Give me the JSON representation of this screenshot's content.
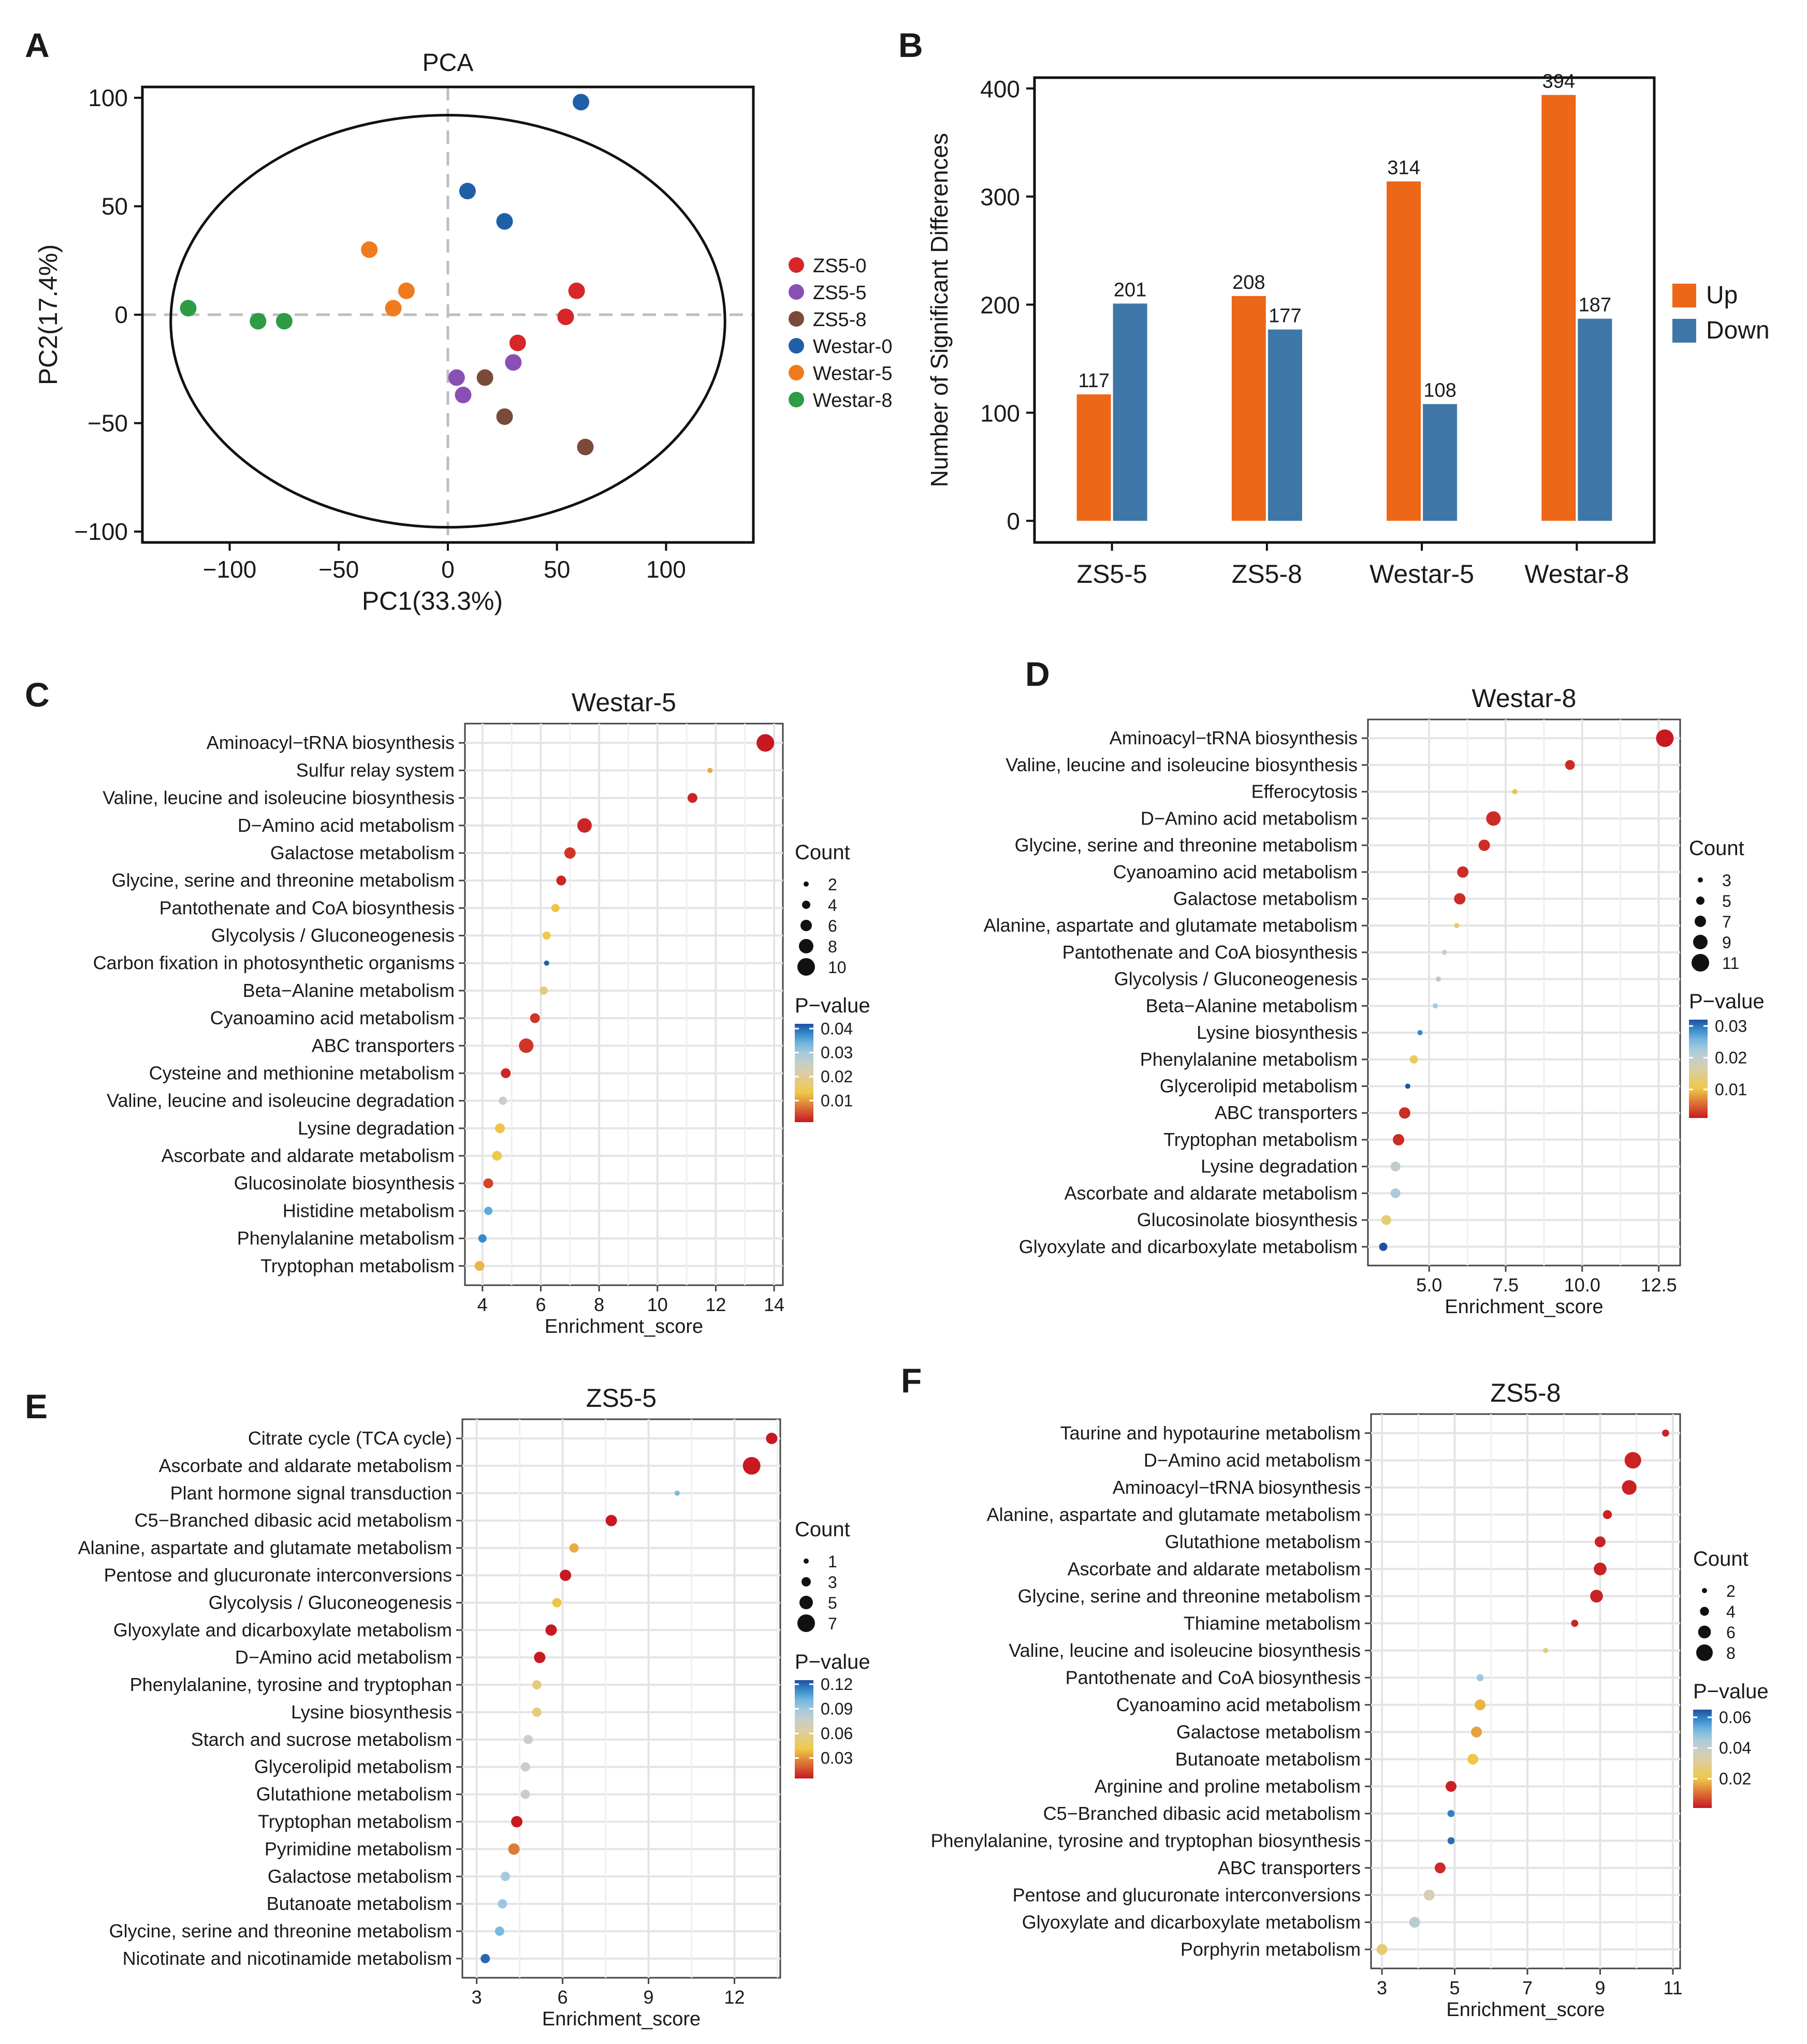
{
  "chart_data": [
    {
      "panel": "A",
      "type": "scatter",
      "title": "PCA",
      "xlabel": "PC1(33.3%)",
      "ylabel": "PC2(17.4%)",
      "xlim": [
        -140,
        140
      ],
      "ylim": [
        -105,
        105
      ],
      "xticks": [
        -100,
        -50,
        0,
        50,
        100
      ],
      "yticks": [
        -100,
        -50,
        0,
        50,
        100
      ],
      "xtick_labels": [
        "−100",
        "−50",
        "0",
        "50",
        "100"
      ],
      "ytick_labels": [
        "−100",
        "−50",
        "0",
        "50",
        "100"
      ],
      "ellipse": {
        "cx": 0,
        "cy": -3,
        "rx": 127,
        "ry": 95
      },
      "series": [
        {
          "name": "ZS5-0",
          "color": "#d62728",
          "points": [
            [
              59,
              11
            ],
            [
              54,
              -1
            ],
            [
              32,
              -13
            ]
          ]
        },
        {
          "name": "ZS5-5",
          "color": "#8a4fb5",
          "points": [
            [
              4,
              -29
            ],
            [
              7,
              -37
            ],
            [
              30,
              -22
            ]
          ]
        },
        {
          "name": "ZS5-8",
          "color": "#7a4a3a",
          "points": [
            [
              17,
              -29
            ],
            [
              26,
              -47
            ],
            [
              63,
              -61
            ]
          ]
        },
        {
          "name": "Westar-0",
          "color": "#1f5fa8",
          "points": [
            [
              9,
              57
            ],
            [
              26,
              43
            ],
            [
              61,
              98
            ]
          ]
        },
        {
          "name": "Westar-5",
          "color": "#f07a1e",
          "points": [
            [
              -36,
              30
            ],
            [
              -19,
              11
            ],
            [
              -25,
              3
            ]
          ]
        },
        {
          "name": "Westar-8",
          "color": "#2e9b45",
          "points": [
            [
              -119,
              3
            ],
            [
              -87,
              -3
            ],
            [
              -75,
              -3
            ]
          ]
        }
      ]
    },
    {
      "panel": "B",
      "type": "bar",
      "categories": [
        "ZS5-5",
        "ZS5-8",
        "Westar-5",
        "Westar-8"
      ],
      "series": [
        {
          "name": "Up",
          "color": "#ec6718",
          "values": [
            117,
            208,
            314,
            394
          ]
        },
        {
          "name": "Down",
          "color": "#3f76a8",
          "values": [
            201,
            177,
            108,
            187
          ]
        }
      ],
      "value_labels": {
        "Up": [
          "117",
          "208",
          "314",
          "394"
        ],
        "Down": [
          "201",
          "177",
          "108",
          "187"
        ]
      },
      "ylabel": "Number of Significant Differences",
      "ylim": [
        -20,
        410
      ],
      "yticks": [
        0,
        100,
        200,
        300,
        400
      ],
      "ytick_labels": [
        "0",
        "100",
        "200",
        "300",
        "400"
      ],
      "legend": "right"
    },
    {
      "panel": "C",
      "type": "scatter",
      "subtype": "enrichment_dot",
      "title": "Westar-5",
      "xlabel": "Enrichment_score",
      "xlim": [
        3.4,
        14.3
      ],
      "xticks": [
        4,
        6,
        8,
        10,
        12,
        14
      ],
      "xtick_labels": [
        "4",
        "6",
        "8",
        "10",
        "12",
        "14"
      ],
      "pathways": [
        "Aminoacyl−tRNA biosynthesis",
        "Sulfur relay system",
        "Valine, leucine and isoleucine biosynthesis",
        "D−Amino acid metabolism",
        "Galactose metabolism",
        "Glycine, serine and threonine metabolism",
        "Pantothenate and CoA biosynthesis",
        "Glycolysis / Gluconeogenesis",
        "Carbon fixation in photosynthetic organisms",
        "Beta−Alanine metabolism",
        "Cyanoamino acid metabolism",
        "ABC transporters",
        "Cysteine and methionine metabolism",
        "Valine, leucine and isoleucine degradation",
        "Lysine degradation",
        "Ascorbate and aldarate metabolism",
        "Glucosinolate biosynthesis",
        "Histidine metabolism",
        "Phenylalanine metabolism",
        "Tryptophan metabolism"
      ],
      "enrichment": [
        13.7,
        11.8,
        11.2,
        7.5,
        7.0,
        6.7,
        6.5,
        6.2,
        6.2,
        6.1,
        5.8,
        5.5,
        4.8,
        4.7,
        4.6,
        4.5,
        4.2,
        4.2,
        4.0,
        3.9
      ],
      "count": [
        10,
        2,
        5,
        8,
        6,
        5,
        4,
        4,
        2,
        4,
        5,
        8,
        5,
        4,
        5,
        5,
        5,
        4,
        4,
        5
      ],
      "pvalue": [
        0.001,
        0.011,
        0.002,
        0.002,
        0.003,
        0.002,
        0.013,
        0.014,
        0.041,
        0.018,
        0.003,
        0.003,
        0.002,
        0.025,
        0.013,
        0.014,
        0.004,
        0.035,
        0.038,
        0.012
      ],
      "count_legend": {
        "title": "Count",
        "values": [
          2,
          4,
          6,
          8,
          10
        ],
        "labels": [
          "2",
          "4",
          "6",
          "8",
          "10"
        ]
      },
      "pvalue_legend": {
        "title": "P−value",
        "min": 0.001,
        "max": 0.042,
        "ticks": [
          0.04,
          0.03,
          0.02,
          0.01
        ],
        "labels": [
          "0.04",
          "0.03",
          "0.02",
          "0.01"
        ]
      }
    },
    {
      "panel": "D",
      "type": "scatter",
      "subtype": "enrichment_dot",
      "title": "Westar-8",
      "xlabel": "Enrichment_score",
      "xlim": [
        3.0,
        13.2
      ],
      "xticks": [
        5.0,
        7.5,
        10.0,
        12.5
      ],
      "xtick_labels": [
        "5.0",
        "7.5",
        "10.0",
        "12.5"
      ],
      "pathways": [
        "Aminoacyl−tRNA biosynthesis",
        "Valine, leucine and isoleucine biosynthesis",
        "Efferocytosis",
        "D−Amino acid metabolism",
        "Glycine, serine and threonine metabolism",
        "Cyanoamino acid metabolism",
        "Galactose metabolism",
        "Alanine, aspartate and glutamate metabolism",
        "Pantothenate and CoA biosynthesis",
        "Glycolysis / Gluconeogenesis",
        "Beta−Alanine metabolism",
        "Lysine biosynthesis",
        "Phenylalanine metabolism",
        "Glycerolipid metabolism",
        "ABC transporters",
        "Tryptophan metabolism",
        "Lysine degradation",
        "Ascorbate and aldarate metabolism",
        "Glucosinolate biosynthesis",
        "Glyoxylate and dicarboxylate metabolism"
      ],
      "enrichment": [
        12.7,
        9.6,
        7.8,
        7.1,
        6.8,
        6.1,
        6.0,
        5.9,
        5.5,
        5.3,
        5.2,
        4.7,
        4.5,
        4.3,
        4.2,
        4.0,
        3.9,
        3.9,
        3.6,
        3.5
      ],
      "count": [
        11,
        6,
        3,
        9,
        7,
        7,
        7,
        3,
        3,
        3,
        3,
        3,
        5,
        3,
        7,
        7,
        6,
        6,
        6,
        5
      ],
      "pvalue": [
        0.001,
        0.002,
        0.01,
        0.002,
        0.002,
        0.002,
        0.002,
        0.013,
        0.019,
        0.021,
        0.023,
        0.029,
        0.012,
        0.032,
        0.002,
        0.002,
        0.02,
        0.022,
        0.013,
        0.032
      ],
      "count_legend": {
        "title": "Count",
        "values": [
          3,
          5,
          7,
          9,
          11
        ],
        "labels": [
          "3",
          "5",
          "7",
          "9",
          "11"
        ]
      },
      "pvalue_legend": {
        "title": "P−value",
        "min": 0.001,
        "max": 0.032,
        "ticks": [
          0.03,
          0.02,
          0.01
        ],
        "labels": [
          "0.03",
          "0.02",
          "0.01"
        ]
      }
    },
    {
      "panel": "E",
      "type": "scatter",
      "subtype": "enrichment_dot",
      "title": "ZS5-5",
      "xlabel": "Enrichment_score",
      "xlim": [
        2.5,
        13.6
      ],
      "xticks": [
        3,
        6,
        9,
        12
      ],
      "xtick_labels": [
        "3",
        "6",
        "9",
        "12"
      ],
      "pathways": [
        "Citrate cycle (TCA cycle)",
        "Ascorbate and aldarate metabolism",
        "Plant hormone signal transduction",
        "C5−Branched dibasic acid metabolism",
        "Alanine, aspartate and glutamate metabolism",
        "Pentose and glucuronate interconversions",
        "Glycolysis / Gluconeogenesis",
        "Glyoxylate and dicarboxylate metabolism",
        "D−Amino acid metabolism",
        "Phenylalanine, tyrosine and tryptophan",
        "Lysine biosynthesis",
        "Starch and sucrose metabolism",
        "Glycerolipid metabolism",
        "Glutathione metabolism",
        "Tryptophan metabolism",
        "Pyrimidine metabolism",
        "Galactose metabolism",
        "Butanoate metabolism",
        "Glycine, serine and threonine metabolism",
        "Nicotinate and nicotinamide metabolism"
      ],
      "enrichment": [
        13.3,
        12.6,
        10.0,
        7.7,
        6.4,
        6.1,
        5.8,
        5.6,
        5.2,
        5.1,
        5.1,
        4.8,
        4.7,
        4.7,
        4.4,
        4.3,
        4.0,
        3.9,
        3.8,
        3.3
      ],
      "count": [
        4,
        7,
        1,
        4,
        3,
        4,
        3,
        4,
        4,
        3,
        3,
        3,
        3,
        3,
        4,
        4,
        3,
        3,
        3,
        3
      ],
      "pvalue": [
        0.005,
        0.005,
        0.1,
        0.005,
        0.035,
        0.005,
        0.04,
        0.005,
        0.005,
        0.055,
        0.055,
        0.075,
        0.075,
        0.075,
        0.005,
        0.025,
        0.09,
        0.095,
        0.1,
        0.12
      ],
      "count_legend": {
        "title": "Count",
        "values": [
          1,
          3,
          5,
          7
        ],
        "labels": [
          "1",
          "3",
          "5",
          "7"
        ]
      },
      "pvalue_legend": {
        "title": "P−value",
        "min": 0.005,
        "max": 0.125,
        "ticks": [
          0.12,
          0.09,
          0.06,
          0.03
        ],
        "labels": [
          "0.12",
          "0.09",
          "0.06",
          "0.03"
        ]
      }
    },
    {
      "panel": "F",
      "type": "scatter",
      "subtype": "enrichment_dot",
      "title": "ZS5-8",
      "xlabel": "Enrichment_score",
      "xlim": [
        2.7,
        11.2
      ],
      "xticks": [
        3,
        5,
        7,
        9,
        11
      ],
      "xtick_labels": [
        "3",
        "5",
        "7",
        "9",
        "11"
      ],
      "pathways": [
        "Taurine and hypotaurine metabolism",
        "D−Amino acid metabolism",
        "Aminoacyl−tRNA biosynthesis",
        "Alanine, aspartate and glutamate metabolism",
        "Glutathione metabolism",
        "Ascorbate and aldarate metabolism",
        "Glycine, serine and threonine metabolism",
        "Thiamine metabolism",
        "Valine, leucine and isoleucine biosynthesis",
        "Pantothenate and CoA biosynthesis",
        "Cyanoamino acid metabolism",
        "Galactose metabolism",
        "Butanoate metabolism",
        "Arginine and proline metabolism",
        "C5−Branched dibasic acid metabolism",
        "Phenylalanine, tyrosine and tryptophan biosynthesis",
        "ABC transporters",
        "Pentose and glucuronate interconversions",
        "Glyoxylate and dicarboxylate metabolism",
        "Porphyrin metabolism"
      ],
      "enrichment": [
        10.8,
        9.9,
        9.8,
        9.2,
        9.0,
        9.0,
        8.9,
        8.3,
        7.5,
        5.7,
        5.7,
        5.6,
        5.5,
        4.9,
        4.9,
        4.9,
        4.6,
        4.3,
        3.9,
        3.0
      ],
      "count": [
        3,
        8,
        7,
        4,
        5,
        6,
        6,
        3,
        2,
        3,
        5,
        5,
        5,
        5,
        3,
        3,
        5,
        5,
        5,
        5
      ],
      "pvalue": [
        0.002,
        0.002,
        0.002,
        0.002,
        0.002,
        0.002,
        0.002,
        0.002,
        0.028,
        0.048,
        0.018,
        0.016,
        0.02,
        0.002,
        0.06,
        0.062,
        0.003,
        0.035,
        0.042,
        0.026
      ],
      "count_legend": {
        "title": "Count",
        "values": [
          2,
          4,
          6,
          8
        ],
        "labels": [
          "2",
          "4",
          "6",
          "8"
        ]
      },
      "pvalue_legend": {
        "title": "P−value",
        "min": 0.001,
        "max": 0.065,
        "ticks": [
          0.06,
          0.04,
          0.02
        ],
        "labels": [
          "0.06",
          "0.04",
          "0.02"
        ]
      }
    }
  ]
}
